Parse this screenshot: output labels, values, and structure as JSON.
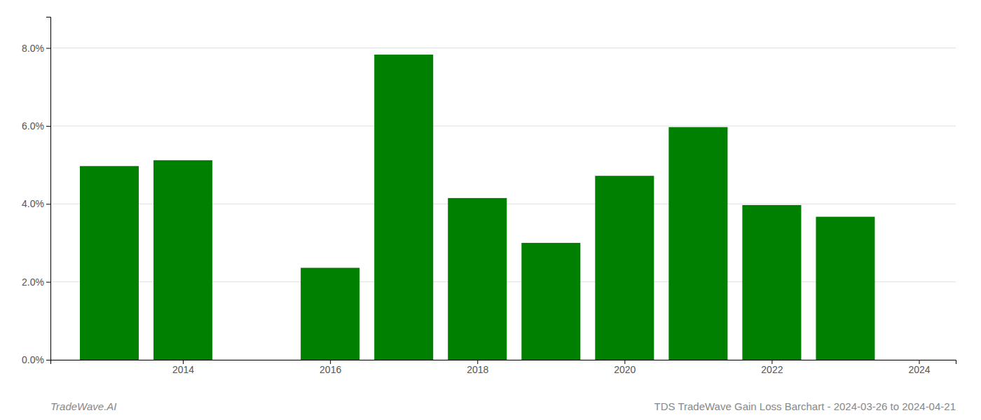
{
  "chart_data": {
    "type": "bar",
    "title": "TDS TradeWave Gain Loss Barchart - 2024-03-26 to 2024-04-21",
    "annotations": [
      "TradeWave.AI"
    ],
    "x": [
      2013,
      2014,
      2016,
      2017,
      2018,
      2019,
      2020,
      2021,
      2022,
      2023
    ],
    "values": [
      0.0497,
      0.0512,
      0.0236,
      0.0783,
      0.0415,
      0.03,
      0.0472,
      0.0597,
      0.0397,
      0.0367
    ],
    "color": "#008000",
    "xlim": [
      2012.2,
      2024.5
    ],
    "xticks": [
      2014,
      2016,
      2018,
      2020,
      2022,
      2024
    ],
    "ylim": [
      0.0,
      0.088
    ],
    "yticks": [
      {
        "value": 0.0,
        "label": "0.0%"
      },
      {
        "value": 0.02,
        "label": "2.0%"
      },
      {
        "value": 0.04,
        "label": "4.0%"
      },
      {
        "value": 0.06,
        "label": "6.0%"
      },
      {
        "value": 0.08,
        "label": "8.0%"
      }
    ],
    "grid": true
  }
}
